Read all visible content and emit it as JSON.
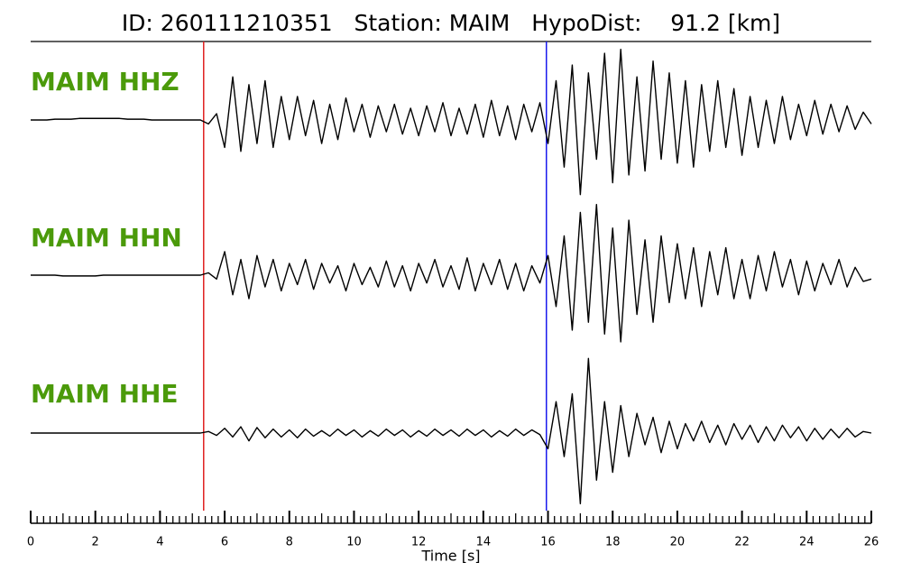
{
  "chart_data": {
    "type": "line",
    "title": "ID: 260111210351   Station: MAIM   HypoDist:    91.2 [km]",
    "xlabel": "Time [s]",
    "xlim": [
      0,
      26
    ],
    "xticks": [
      0,
      2,
      4,
      6,
      8,
      10,
      12,
      14,
      16,
      18,
      20,
      22,
      24,
      26
    ],
    "xminor_step": 0.2,
    "ylim": [
      -1,
      1
    ],
    "label_color": "#4b9a0a",
    "picks": [
      {
        "x": 5.35,
        "color": "#e02020"
      },
      {
        "x": 15.95,
        "color": "#1a1aee"
      }
    ],
    "x": [
      0,
      0.25,
      0.5,
      0.75,
      1,
      1.25,
      1.5,
      1.75,
      2,
      2.25,
      2.5,
      2.75,
      3,
      3.25,
      3.5,
      3.75,
      4,
      4.25,
      4.5,
      4.75,
      5,
      5.25,
      5.5,
      5.75,
      6,
      6.25,
      6.5,
      6.75,
      7,
      7.25,
      7.5,
      7.75,
      8,
      8.25,
      8.5,
      8.75,
      9,
      9.25,
      9.5,
      9.75,
      10,
      10.25,
      10.5,
      10.75,
      11,
      11.25,
      11.5,
      11.75,
      12,
      12.25,
      12.5,
      12.75,
      13,
      13.25,
      13.5,
      13.75,
      14,
      14.25,
      14.5,
      14.75,
      15,
      15.25,
      15.5,
      15.75,
      16,
      16.25,
      16.5,
      16.75,
      17,
      17.25,
      17.5,
      17.75,
      18,
      18.25,
      18.5,
      18.75,
      19,
      19.25,
      19.5,
      19.75,
      20,
      20.25,
      20.5,
      20.75,
      21,
      21.25,
      21.5,
      21.75,
      22,
      22.25,
      22.5,
      22.75,
      23,
      23.25,
      23.5,
      23.75,
      24,
      24.25,
      24.5,
      24.75,
      25,
      25.25,
      25.5,
      25.75,
      26
    ],
    "series": [
      {
        "name": "MAIM HHZ",
        "color": "#000000",
        "values": [
          0,
          0,
          0,
          0.01,
          0.01,
          0.01,
          0.02,
          0.02,
          0.02,
          0.02,
          0.02,
          0.02,
          0.01,
          0.01,
          0.01,
          0,
          0,
          0,
          0,
          0,
          0,
          0,
          -0.05,
          0.08,
          -0.35,
          0.55,
          -0.4,
          0.45,
          -0.3,
          0.5,
          -0.35,
          0.3,
          -0.25,
          0.3,
          -0.2,
          0.25,
          -0.3,
          0.2,
          -0.25,
          0.28,
          -0.15,
          0.2,
          -0.22,
          0.18,
          -0.15,
          0.2,
          -0.18,
          0.15,
          -0.2,
          0.18,
          -0.15,
          0.22,
          -0.2,
          0.15,
          -0.18,
          0.2,
          -0.22,
          0.25,
          -0.2,
          0.18,
          -0.25,
          0.2,
          -0.15,
          0.22,
          -0.3,
          0.5,
          -0.6,
          0.7,
          -0.95,
          0.6,
          -0.5,
          0.85,
          -0.8,
          0.9,
          -0.7,
          0.55,
          -0.65,
          0.75,
          -0.5,
          0.6,
          -0.55,
          0.5,
          -0.6,
          0.45,
          -0.4,
          0.5,
          -0.35,
          0.4,
          -0.45,
          0.3,
          -0.35,
          0.25,
          -0.3,
          0.3,
          -0.25,
          0.2,
          -0.2,
          0.25,
          -0.18,
          0.2,
          -0.15,
          0.18,
          -0.12,
          0.1,
          -0.05
        ]
      },
      {
        "name": "MAIM HHN",
        "color": "#000000",
        "values": [
          0,
          0,
          0,
          0,
          -0.01,
          -0.01,
          -0.01,
          -0.01,
          -0.01,
          0,
          0,
          0,
          0,
          0,
          0,
          0,
          0,
          0,
          0,
          0,
          0,
          0,
          0.03,
          -0.05,
          0.3,
          -0.25,
          0.2,
          -0.3,
          0.25,
          -0.15,
          0.2,
          -0.2,
          0.15,
          -0.12,
          0.2,
          -0.18,
          0.15,
          -0.1,
          0.12,
          -0.2,
          0.15,
          -0.12,
          0.1,
          -0.15,
          0.18,
          -0.15,
          0.12,
          -0.2,
          0.15,
          -0.1,
          0.2,
          -0.15,
          0.12,
          -0.18,
          0.22,
          -0.2,
          0.15,
          -0.12,
          0.2,
          -0.18,
          0.15,
          -0.2,
          0.12,
          -0.1,
          0.25,
          -0.4,
          0.5,
          -0.7,
          0.8,
          -0.6,
          0.9,
          -0.75,
          0.6,
          -0.85,
          0.7,
          -0.5,
          0.45,
          -0.6,
          0.5,
          -0.35,
          0.4,
          -0.3,
          0.35,
          -0.4,
          0.3,
          -0.25,
          0.35,
          -0.3,
          0.2,
          -0.3,
          0.25,
          -0.2,
          0.3,
          -0.15,
          0.2,
          -0.25,
          0.18,
          -0.2,
          0.15,
          -0.12,
          0.2,
          -0.15,
          0.1,
          -0.08,
          -0.05
        ]
      },
      {
        "name": "MAIM HHE",
        "color": "#000000",
        "values": [
          0,
          0,
          0,
          0,
          0,
          0,
          0,
          0,
          0,
          0,
          0,
          0,
          0,
          0,
          0,
          0,
          0,
          0,
          0,
          0,
          0,
          0,
          0.02,
          -0.03,
          0.06,
          -0.05,
          0.08,
          -0.1,
          0.07,
          -0.06,
          0.05,
          -0.05,
          0.04,
          -0.06,
          0.05,
          -0.04,
          0.03,
          -0.04,
          0.05,
          -0.03,
          0.04,
          -0.05,
          0.03,
          -0.04,
          0.05,
          -0.03,
          0.04,
          -0.05,
          0.03,
          -0.04,
          0.05,
          -0.03,
          0.04,
          -0.04,
          0.05,
          -0.03,
          0.04,
          -0.05,
          0.03,
          -0.04,
          0.05,
          -0.03,
          0.04,
          -0.02,
          -0.2,
          0.4,
          -0.3,
          0.5,
          -0.9,
          0.95,
          -0.6,
          0.4,
          -0.5,
          0.35,
          -0.3,
          0.25,
          -0.15,
          0.2,
          -0.25,
          0.15,
          -0.2,
          0.12,
          -0.1,
          0.15,
          -0.12,
          0.1,
          -0.15,
          0.12,
          -0.08,
          0.1,
          -0.12,
          0.08,
          -0.1,
          0.1,
          -0.06,
          0.08,
          -0.1,
          0.06,
          -0.08,
          0.05,
          -0.06,
          0.06,
          -0.05,
          0.02,
          0
        ]
      }
    ]
  }
}
